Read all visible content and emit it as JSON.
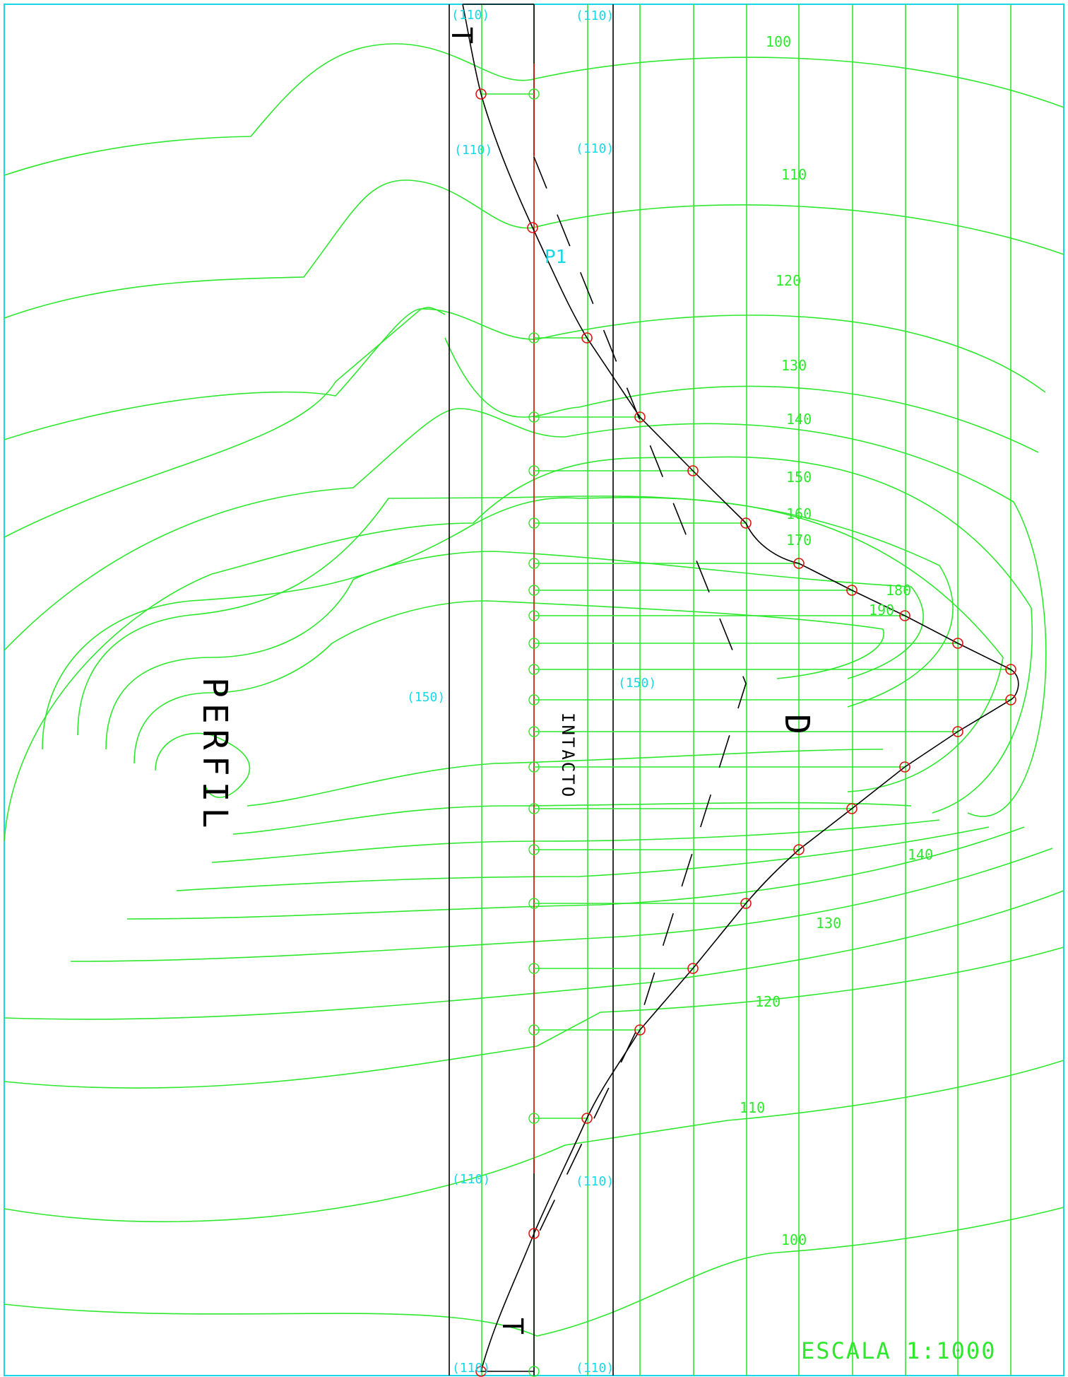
{
  "contour_labels": [
    {
      "name": "contour-label-100-top",
      "text": "100"
    },
    {
      "name": "contour-label-110-top",
      "text": "110"
    },
    {
      "name": "contour-label-120-top",
      "text": "120"
    },
    {
      "name": "contour-label-130-top",
      "text": "130"
    },
    {
      "name": "contour-label-140-top",
      "text": "140"
    },
    {
      "name": "contour-label-150-top",
      "text": "150"
    },
    {
      "name": "contour-label-160-top",
      "text": "160"
    },
    {
      "name": "contour-label-170-top",
      "text": "170"
    },
    {
      "name": "contour-label-180",
      "text": "180"
    },
    {
      "name": "contour-label-190",
      "text": "190"
    },
    {
      "name": "contour-label-140-bottom",
      "text": "140"
    },
    {
      "name": "contour-label-130-bottom",
      "text": "130"
    },
    {
      "name": "contour-label-120-bottom",
      "text": "120"
    },
    {
      "name": "contour-label-110-bottom",
      "text": "110"
    },
    {
      "name": "contour-label-100-bottom",
      "text": "100"
    }
  ],
  "cyan_labels": [
    {
      "name": "cyan-label-110-a",
      "text": "(110)"
    },
    {
      "name": "cyan-label-110-b",
      "text": "(110)"
    },
    {
      "name": "cyan-label-110-c",
      "text": "(110)"
    },
    {
      "name": "cyan-label-110-d",
      "text": "(110)"
    },
    {
      "name": "cyan-label-p1",
      "text": "P1"
    },
    {
      "name": "cyan-label-150-a",
      "text": "(150)"
    },
    {
      "name": "cyan-label-150-b",
      "text": "(150)"
    },
    {
      "name": "cyan-label-110-e",
      "text": "(110)"
    },
    {
      "name": "cyan-label-110-f",
      "text": "(110)"
    },
    {
      "name": "cyan-label-110-g",
      "text": "(110)"
    },
    {
      "name": "cyan-label-110-h",
      "text": "(110)"
    }
  ],
  "big_labels": {
    "perfil": "PERFIL",
    "intacto": "INTACTO",
    "d": "D",
    "t_top": "T",
    "t_bottom": "T"
  },
  "scale": "ESCALA 1:1000",
  "colors": {
    "contour": "#2ee82e",
    "profile": "#000000",
    "axis": "#e01010",
    "annotation": "#18d8e8",
    "border": "#18d8e8"
  }
}
